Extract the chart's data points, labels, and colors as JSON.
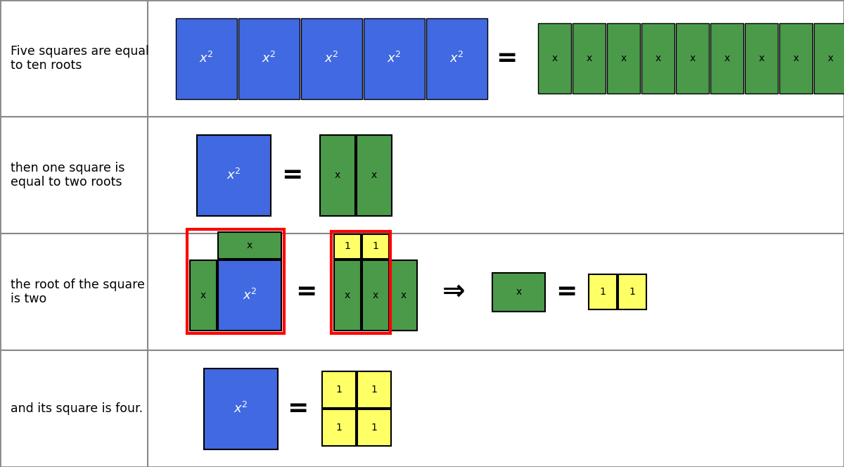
{
  "blue": "#4169E1",
  "green": "#4a9a4a",
  "yellow": "#FFFF66",
  "red": "#FF0000",
  "black": "#000000",
  "white": "#FFFFFF",
  "bg": "#FFFFFF",
  "grid_color": "#888888",
  "label_fontsize": 12.5,
  "tile_fontsize": 13,
  "small_fontsize": 10,
  "row_labels": [
    "Five squares are equal\nto ten roots",
    "then one square is\nequal to two roots",
    "the root of the square\nis two",
    "and its square is four."
  ]
}
